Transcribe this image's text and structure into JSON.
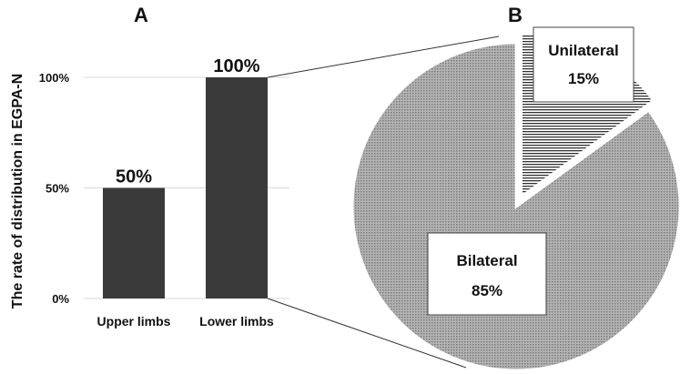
{
  "chart_data": [
    {
      "panel": "A",
      "type": "bar",
      "ylabel": "The rate of distribution in EGPA-N",
      "categories": [
        "Upper limbs",
        "Lower limbs"
      ],
      "values": [
        50,
        100
      ],
      "data_labels": [
        "50%",
        "100%"
      ],
      "yticks": [
        "0%",
        "50%",
        "100%"
      ],
      "ylim": [
        0,
        100
      ],
      "grid": true,
      "bar_color": "#3a3a3a"
    },
    {
      "panel": "B",
      "type": "pie",
      "slices": [
        {
          "label": "Unilateral",
          "value": 15,
          "value_label": "15%",
          "fill": "hatched"
        },
        {
          "label": "Bilateral",
          "value": 85,
          "value_label": "85%",
          "fill": "dotted"
        }
      ]
    }
  ],
  "colors": {
    "bar": "#3a3a3a",
    "pie_fill": "#9a9a9a",
    "text": "#111111",
    "grid": "#d9d9d9"
  }
}
